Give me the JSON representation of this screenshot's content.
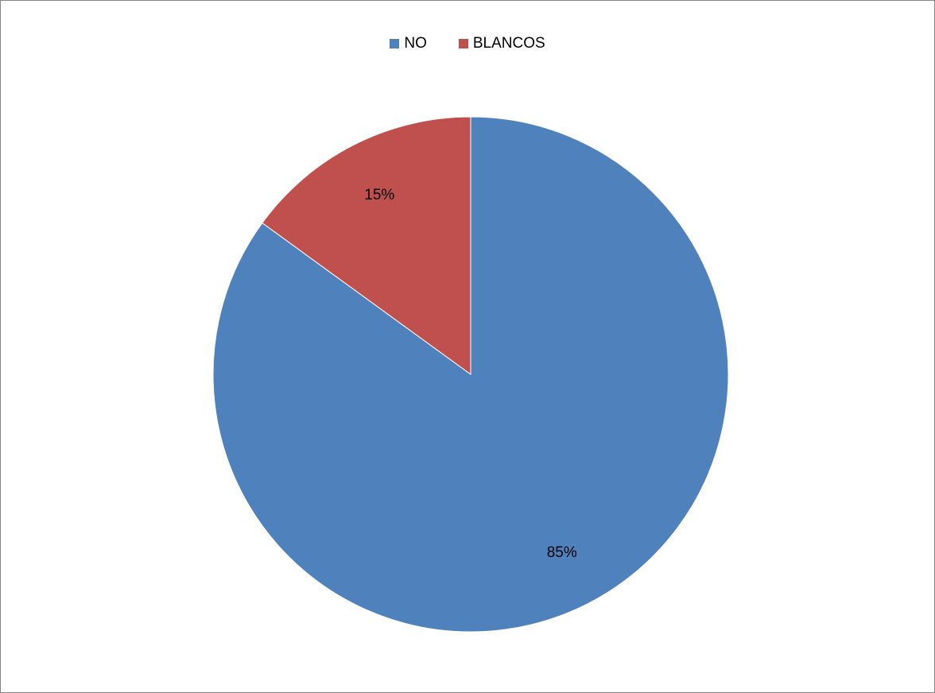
{
  "chart_data": {
    "type": "pie",
    "title": "",
    "series": [
      {
        "name": "NO",
        "value": 85,
        "label": "85%",
        "color": "#4F81BD"
      },
      {
        "name": "BLANCOS",
        "value": 15,
        "label": "15%",
        "color": "#C0504D"
      }
    ],
    "legend_position": "top",
    "start_angle_deg": 0,
    "direction": "clockwise"
  }
}
